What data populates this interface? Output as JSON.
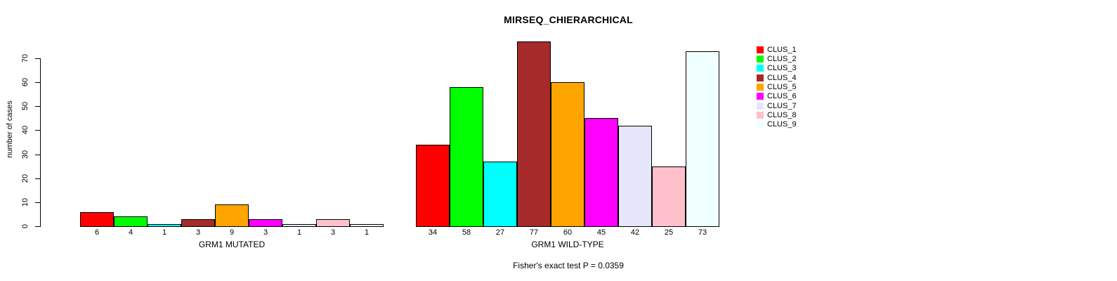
{
  "chart_data": {
    "type": "bar",
    "title": "MIRSEQ_CHIERARCHICAL",
    "ylabel": "number of cases",
    "footnote": "Fisher's exact test P = 0.0359",
    "categories": [
      "GRM1 MUTATED",
      "GRM1 WILD-TYPE"
    ],
    "series": [
      {
        "name": "CLUS_1",
        "color": "#FF0000",
        "values": [
          6,
          34
        ]
      },
      {
        "name": "CLUS_2",
        "color": "#00FF00",
        "values": [
          4,
          58
        ]
      },
      {
        "name": "CLUS_3",
        "color": "#00FFFF",
        "values": [
          1,
          27
        ]
      },
      {
        "name": "CLUS_4",
        "color": "#A52A2A",
        "values": [
          3,
          77
        ]
      },
      {
        "name": "CLUS_5",
        "color": "#FFA500",
        "values": [
          9,
          60
        ]
      },
      {
        "name": "CLUS_6",
        "color": "#FF00FF",
        "values": [
          3,
          45
        ]
      },
      {
        "name": "CLUS_7",
        "color": "#E6E6FA",
        "values": [
          1,
          42
        ]
      },
      {
        "name": "CLUS_8",
        "color": "#FFC0CB",
        "values": [
          3,
          25
        ]
      },
      {
        "name": "CLUS_9",
        "color": "#F0FFFF",
        "values": [
          1,
          73
        ]
      }
    ],
    "yticks": [
      0,
      10,
      20,
      30,
      40,
      50,
      60,
      70
    ],
    "ylim": [
      0,
      77
    ],
    "grid": false,
    "legend_position": "top-right",
    "bar_value_labels": true,
    "bar_border_color": "#000000",
    "background": "#FFFFFF",
    "text_color": "#000000"
  }
}
